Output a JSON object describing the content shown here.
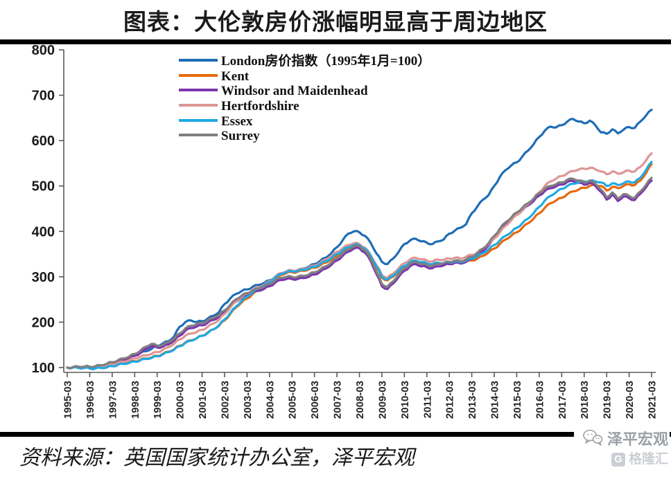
{
  "title": "图表：大伦敦房价涨幅明显高于周边地区",
  "footer": {
    "source_text": "资料来源：英国国家统计办公室，泽平宏观",
    "watermark_account": "泽平宏观",
    "watermark_logo": "格隆汇",
    "watermark_logo_letter": "G"
  },
  "colors": {
    "axis": "#595959",
    "title_text": "#1a1a1a",
    "divider_bar": "#000000",
    "watermark_gray": "#9aa0a6",
    "logo_gray": "#cbcfd4"
  },
  "chart_data": {
    "type": "line",
    "title": "",
    "xlabel": "",
    "ylabel": "",
    "grid": false,
    "legend_position": "top-center-inside",
    "y_range": [
      100,
      800
    ],
    "y_ticks": [
      100,
      200,
      300,
      400,
      500,
      600,
      700,
      800
    ],
    "x_tick_labels": [
      "1995-03",
      "1996-03",
      "1997-03",
      "1998-03",
      "1999-03",
      "2000-03",
      "2001-03",
      "2002-03",
      "2003-03",
      "2004-03",
      "2005-03",
      "2006-03",
      "2007-03",
      "2008-03",
      "2009-03",
      "2010-03",
      "2011-03",
      "2012-03",
      "2013-03",
      "2014-03",
      "2015-03",
      "2016-03",
      "2017-03",
      "2018-03",
      "2019-03",
      "2020-03",
      "2021-03"
    ],
    "sampling": "quarterly from 1995-03 to 2021-03 (105 points per series)",
    "series": [
      {
        "id": "london",
        "name": "London房价指数（1995年1月=100）",
        "color": "#1e6db6",
        "values": [
          100,
          100,
          100,
          100,
          100,
          101,
          103,
          105,
          110,
          114,
          118,
          122,
          128,
          132,
          136,
          141,
          148,
          153,
          158,
          168,
          190,
          200,
          204,
          200,
          202,
          208,
          214,
          222,
          240,
          252,
          262,
          268,
          272,
          278,
          282,
          286,
          292,
          300,
          308,
          310,
          312,
          314,
          318,
          322,
          328,
          335,
          342,
          352,
          365,
          380,
          395,
          400,
          398,
          390,
          375,
          352,
          333,
          328,
          340,
          355,
          372,
          380,
          384,
          378,
          375,
          372,
          378,
          382,
          395,
          402,
          408,
          416,
          440,
          455,
          470,
          480,
          500,
          520,
          535,
          545,
          552,
          565,
          578,
          592,
          608,
          622,
          631,
          629,
          634,
          642,
          648,
          642,
          638,
          644,
          634,
          618,
          615,
          625,
          616,
          624,
          630,
          628,
          642,
          655,
          668
        ]
      },
      {
        "id": "kent",
        "name": "Kent",
        "color": "#e8680a",
        "values": [
          100,
          100,
          99,
          99,
          99,
          99,
          100,
          101,
          104,
          107,
          109,
          111,
          114,
          117,
          120,
          122,
          126,
          130,
          135,
          140,
          148,
          155,
          160,
          164,
          170,
          177,
          184,
          192,
          204,
          218,
          232,
          243,
          252,
          262,
          270,
          276,
          284,
          295,
          304,
          308,
          310,
          311,
          313,
          316,
          320,
          325,
          331,
          338,
          346,
          354,
          362,
          368,
          368,
          360,
          345,
          322,
          298,
          292,
          300,
          312,
          322,
          330,
          334,
          330,
          328,
          326,
          330,
          329,
          330,
          332,
          330,
          333,
          336,
          340,
          346,
          354,
          362,
          372,
          382,
          390,
          398,
          408,
          418,
          428,
          440,
          452,
          462,
          468,
          474,
          482,
          488,
          492,
          496,
          500,
          502,
          500,
          490,
          498,
          495,
          500,
          504,
          502,
          512,
          528,
          548
        ]
      },
      {
        "id": "windsor-and-maidenhead",
        "name": "Windsor and Maidenhead",
        "color": "#7c35ad",
        "values": [
          100,
          100,
          100,
          100,
          100,
          100,
          101,
          104,
          108,
          112,
          116,
          120,
          126,
          132,
          141,
          147,
          144,
          146,
          151,
          159,
          170,
          181,
          187,
          190,
          193,
          199,
          205,
          211,
          221,
          233,
          245,
          253,
          259,
          265,
          269,
          273,
          279,
          287,
          293,
          295,
          295,
          295,
          297,
          300,
          305,
          311,
          318,
          326,
          336,
          346,
          355,
          362,
          363,
          353,
          335,
          307,
          279,
          273,
          285,
          300,
          313,
          323,
          328,
          323,
          321,
          319,
          323,
          325,
          328,
          331,
          329,
          333,
          339,
          347,
          357,
          369,
          385,
          401,
          415,
          425,
          437,
          447,
          457,
          467,
          479,
          489,
          495,
          499,
          503,
          509,
          511,
          507,
          503,
          507,
          500,
          487,
          470,
          481,
          467,
          477,
          473,
          469,
          483,
          497,
          512
        ]
      },
      {
        "id": "hertfordshire",
        "name": "Hertfordshire",
        "color": "#dc9694",
        "values": [
          100,
          100,
          100,
          100,
          100,
          101,
          102,
          104,
          107,
          110,
          113,
          116,
          120,
          124,
          127,
          130,
          134,
          139,
          145,
          152,
          162,
          170,
          175,
          178,
          183,
          190,
          197,
          205,
          218,
          232,
          245,
          255,
          263,
          271,
          277,
          282,
          290,
          300,
          308,
          312,
          314,
          315,
          317,
          320,
          325,
          331,
          338,
          346,
          355,
          363,
          370,
          374,
          372,
          364,
          348,
          326,
          304,
          298,
          307,
          319,
          330,
          338,
          342,
          338,
          336,
          334,
          338,
          337,
          340,
          342,
          340,
          344,
          348,
          354,
          362,
          372,
          384,
          398,
          412,
          424,
          436,
          448,
          460,
          472,
          486,
          500,
          510,
          516,
          522,
          528,
          533,
          536,
          538,
          540,
          537,
          532,
          526,
          532,
          527,
          530,
          534,
          532,
          542,
          556,
          572
        ]
      },
      {
        "id": "essex",
        "name": "Essex",
        "color": "#1fa9e4",
        "values": [
          100,
          100,
          99,
          99,
          98,
          98,
          99,
          100,
          103,
          106,
          108,
          110,
          113,
          116,
          119,
          121,
          125,
          129,
          134,
          139,
          147,
          154,
          159,
          164,
          170,
          176,
          184,
          193,
          206,
          220,
          234,
          246,
          256,
          266,
          274,
          280,
          288,
          298,
          306,
          310,
          312,
          313,
          315,
          318,
          322,
          328,
          334,
          341,
          350,
          358,
          365,
          370,
          370,
          362,
          346,
          324,
          300,
          294,
          302,
          314,
          324,
          332,
          336,
          332,
          330,
          328,
          331,
          330,
          332,
          334,
          332,
          336,
          340,
          345,
          352,
          360,
          370,
          380,
          390,
          398,
          408,
          418,
          428,
          440,
          454,
          468,
          478,
          486,
          494,
          500,
          505,
          508,
          510,
          512,
          510,
          508,
          500,
          506,
          502,
          506,
          510,
          508,
          518,
          535,
          553
        ]
      },
      {
        "id": "surrey",
        "name": "Surrey",
        "color": "#7f7f7f",
        "values": [
          100,
          101,
          102,
          102,
          102,
          103,
          105,
          108,
          112,
          116,
          120,
          124,
          130,
          137,
          146,
          152,
          148,
          150,
          156,
          164,
          175,
          186,
          192,
          195,
          198,
          204,
          210,
          216,
          226,
          238,
          250,
          258,
          264,
          270,
          274,
          278,
          284,
          292,
          298,
          300,
          300,
          300,
          302,
          305,
          310,
          316,
          323,
          331,
          341,
          351,
          360,
          367,
          368,
          358,
          340,
          312,
          284,
          278,
          290,
          305,
          318,
          328,
          333,
          328,
          326,
          324,
          328,
          330,
          333,
          336,
          334,
          338,
          344,
          352,
          362,
          374,
          390,
          406,
          420,
          430,
          442,
          452,
          462,
          472,
          484,
          494,
          500,
          504,
          508,
          514,
          516,
          512,
          508,
          512,
          505,
          492,
          475,
          486,
          472,
          482,
          478,
          474,
          488,
          502,
          518
        ]
      }
    ]
  }
}
